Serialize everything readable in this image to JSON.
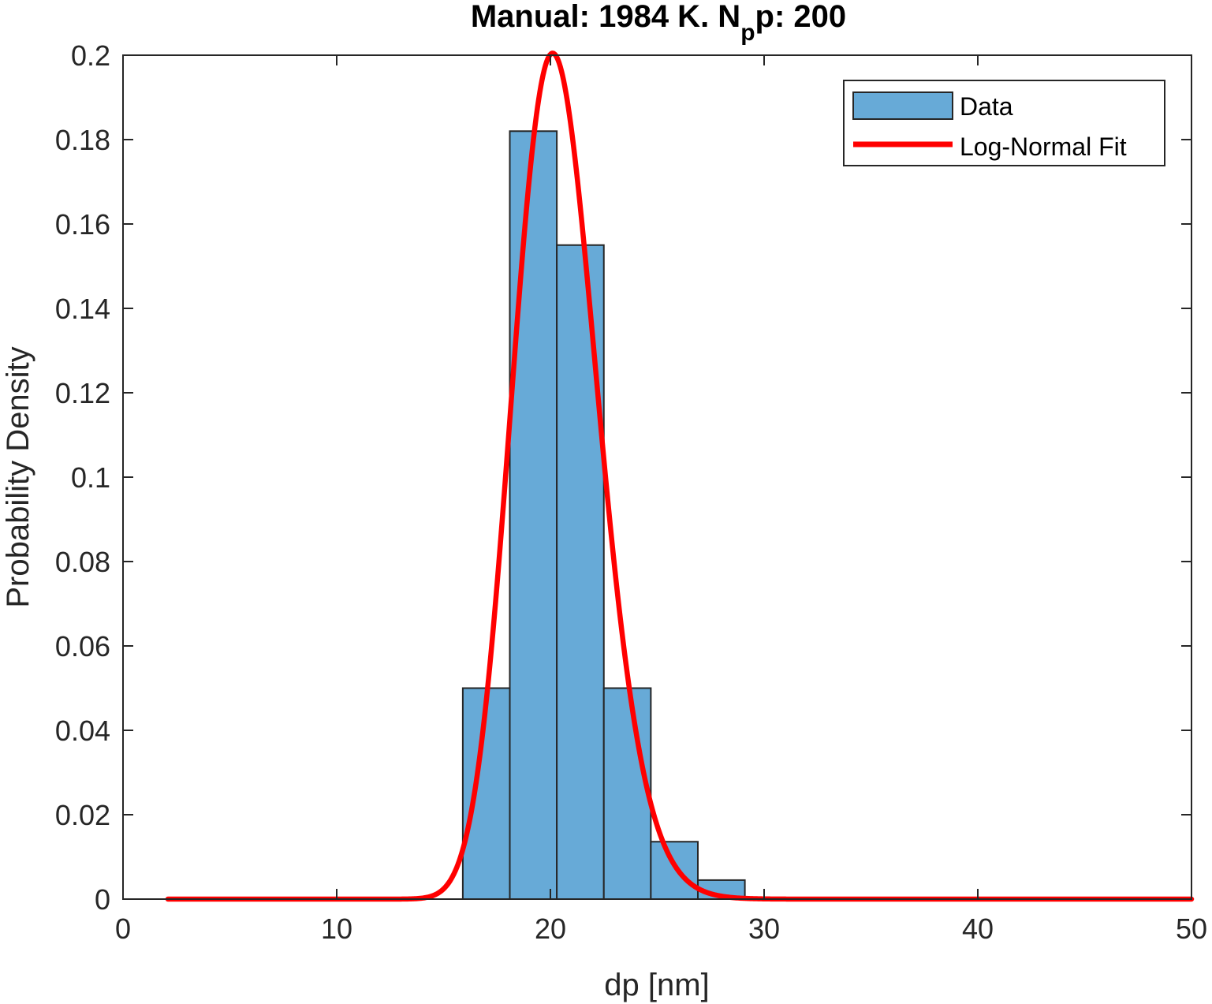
{
  "chart_data": {
    "type": "bar",
    "title": {
      "main": "Manual: 1984 K. N",
      "subscript": "p",
      "rest": "p: 200"
    },
    "xlabel": "dp [nm]",
    "ylabel": "Probability Density",
    "xlim": [
      0,
      50
    ],
    "ylim": [
      0,
      0.2
    ],
    "xticks": [
      0,
      10,
      20,
      30,
      40,
      50
    ],
    "yticks": [
      0,
      0.02,
      0.04,
      0.06,
      0.08,
      0.1,
      0.12,
      0.14,
      0.16,
      0.18,
      0.2
    ],
    "xtick_labels": [
      "0",
      "10",
      "20",
      "30",
      "40",
      "50"
    ],
    "ytick_labels": [
      "0",
      "0.02",
      "0.04",
      "0.06",
      "0.08",
      "0.1",
      "0.12",
      "0.14",
      "0.16",
      "0.18",
      "0.2"
    ],
    "grid": false,
    "legend_position": "top-right",
    "histogram": {
      "name": "Data",
      "color": "#67aad7",
      "edge_color": "#262626",
      "bin_edges": [
        15.9,
        18.1,
        20.3,
        22.5,
        24.7,
        26.9,
        29.1
      ],
      "values": [
        0.05,
        0.182,
        0.155,
        0.05,
        0.0136,
        0.0045
      ]
    },
    "fit": {
      "name": "Log-Normal Fit",
      "color": "#ff0000",
      "x_range": [
        2.1,
        50
      ]
    }
  }
}
